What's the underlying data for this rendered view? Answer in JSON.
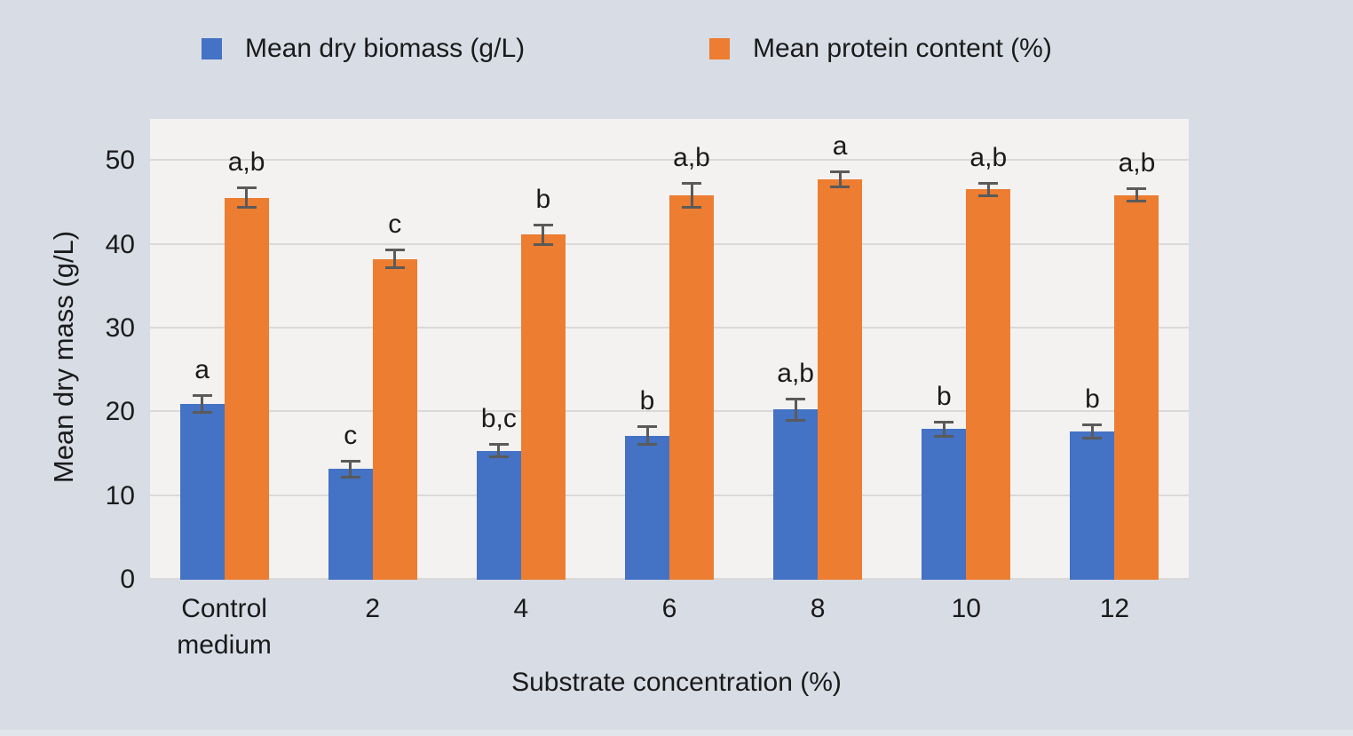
{
  "figure": {
    "background_color": "#d7dce5",
    "plot_background_color": "#f3f2f0",
    "gridline_color": "#d9d9d9",
    "error_bar_color": "#5a5a5a",
    "text_color": "#1a1a1a"
  },
  "chart_data": {
    "type": "bar",
    "title": "",
    "xlabel": "Substrate concentration (%)",
    "ylabel": "Mean dry mass (g/L)",
    "ylim": [
      0,
      55
    ],
    "yticks": [
      0,
      10,
      20,
      30,
      40,
      50
    ],
    "grid": true,
    "legend_position": "top",
    "categories": [
      "Control medium",
      "2",
      "4",
      "6",
      "8",
      "10",
      "12"
    ],
    "series": [
      {
        "name": "Mean dry biomass (g/L)",
        "color": "#4472c4",
        "values": [
          21.0,
          13.2,
          15.4,
          17.2,
          20.3,
          18.0,
          17.7
        ],
        "errors": [
          1.2,
          1.1,
          0.9,
          1.2,
          1.4,
          1.0,
          1.0
        ],
        "annotations": [
          "a",
          "c",
          "b,c",
          "b",
          "a,b",
          "b",
          "b"
        ]
      },
      {
        "name": "Mean protein content (%)",
        "color": "#ed7d31",
        "values": [
          45.6,
          38.3,
          41.2,
          45.9,
          47.8,
          46.6,
          45.9
        ],
        "errors": [
          1.3,
          1.2,
          1.3,
          1.6,
          1.1,
          0.9,
          0.9
        ],
        "annotations": [
          "a,b",
          "c",
          "b",
          "a,b",
          "a",
          "a,b",
          "a,b"
        ]
      }
    ]
  }
}
